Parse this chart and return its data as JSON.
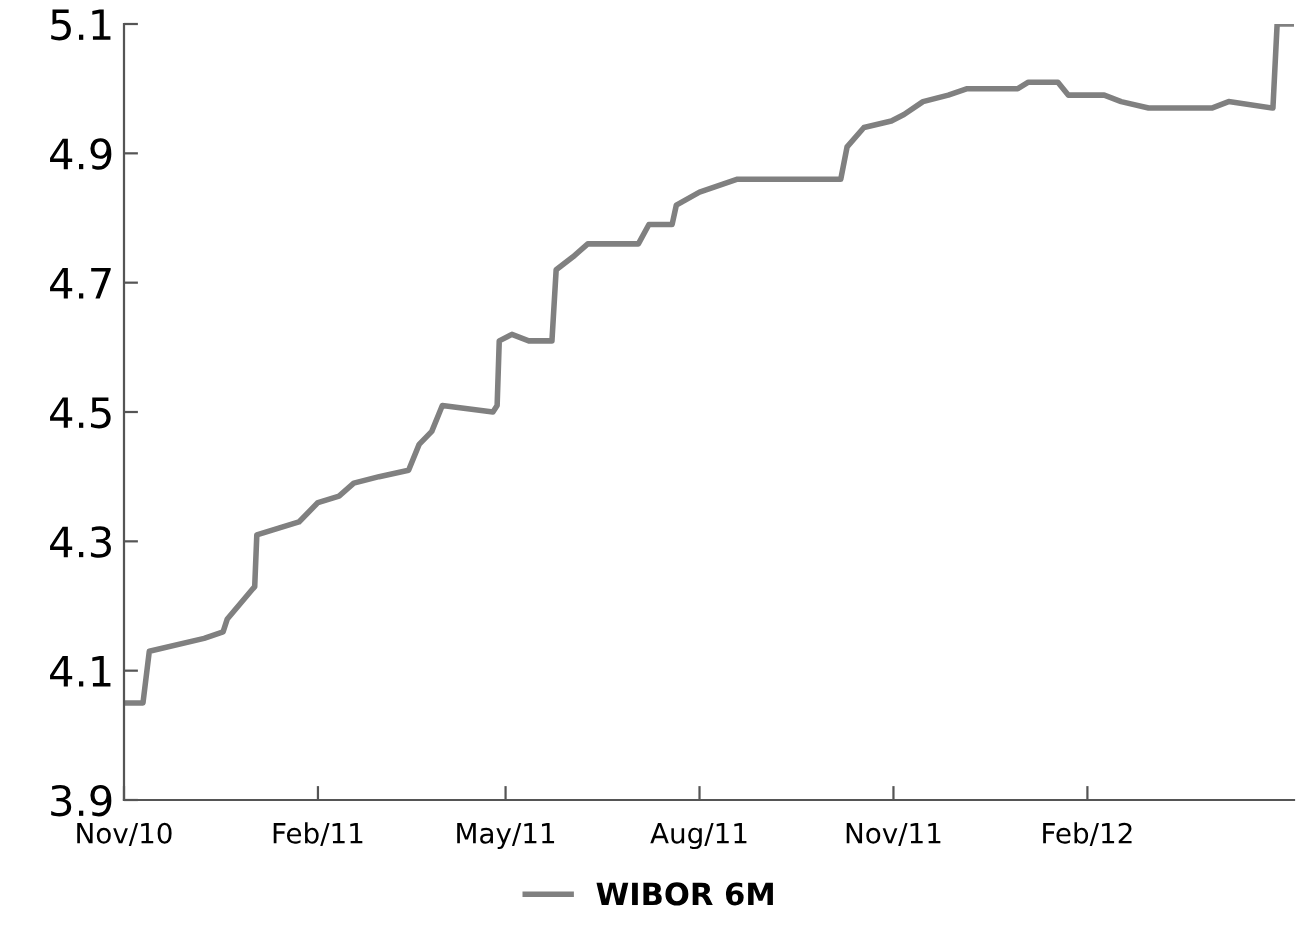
{
  "chart_data": {
    "type": "line",
    "x": [
      "2010-11-01",
      "2010-11-10",
      "2010-11-13",
      "2010-12-09",
      "2010-12-18",
      "2010-12-20",
      "2011-01-02",
      "2011-01-03",
      "2011-01-13",
      "2011-01-23",
      "2011-02-01",
      "2011-02-11",
      "2011-02-18",
      "2011-03-02",
      "2011-03-16",
      "2011-03-21",
      "2011-03-27",
      "2011-04-01",
      "2011-04-25",
      "2011-04-27",
      "2011-04-28",
      "2011-05-04",
      "2011-05-12",
      "2011-05-23",
      "2011-05-25",
      "2011-06-02",
      "2011-06-09",
      "2011-07-03",
      "2011-07-08",
      "2011-07-19",
      "2011-07-21",
      "2011-08-01",
      "2011-08-19",
      "2011-10-07",
      "2011-10-10",
      "2011-10-18",
      "2011-10-31",
      "2011-11-06",
      "2011-11-15",
      "2011-11-27",
      "2011-12-06",
      "2011-12-30",
      "2012-01-04",
      "2012-01-18",
      "2012-01-23",
      "2012-02-09",
      "2012-02-17",
      "2012-03-01",
      "2012-03-31",
      "2012-04-08",
      "2012-04-29",
      "2012-05-01",
      "2012-05-09"
    ],
    "series": [
      {
        "name": "WIBOR 6M",
        "color": "#808080",
        "values": [
          4.05,
          4.05,
          4.13,
          4.15,
          4.16,
          4.18,
          4.23,
          4.31,
          4.32,
          4.33,
          4.36,
          4.37,
          4.39,
          4.4,
          4.41,
          4.45,
          4.47,
          4.51,
          4.5,
          4.51,
          4.61,
          4.62,
          4.61,
          4.61,
          4.72,
          4.74,
          4.76,
          4.76,
          4.79,
          4.79,
          4.82,
          4.84,
          4.86,
          4.86,
          4.91,
          4.94,
          4.95,
          4.96,
          4.98,
          4.99,
          5.0,
          5.0,
          5.01,
          5.01,
          4.99,
          4.99,
          4.98,
          4.97,
          4.97,
          4.98,
          4.97,
          5.1,
          5.1
        ]
      }
    ],
    "xlim": [
      "2010-11-01",
      "2012-05-09"
    ],
    "xticks": [
      {
        "value": "2010-11-01",
        "label": "Nov/10"
      },
      {
        "value": "2011-02-01",
        "label": "Feb/11"
      },
      {
        "value": "2011-05-01",
        "label": "May/11"
      },
      {
        "value": "2011-08-01",
        "label": "Aug/11"
      },
      {
        "value": "2011-11-01",
        "label": "Nov/11"
      },
      {
        "value": "2012-02-01",
        "label": "Feb/12"
      }
    ],
    "ylim": [
      3.9,
      5.1
    ],
    "yticks": [
      3.9,
      4.1,
      4.3,
      4.5,
      4.7,
      4.9,
      5.1
    ],
    "legend": "bottom",
    "grid": false
  }
}
